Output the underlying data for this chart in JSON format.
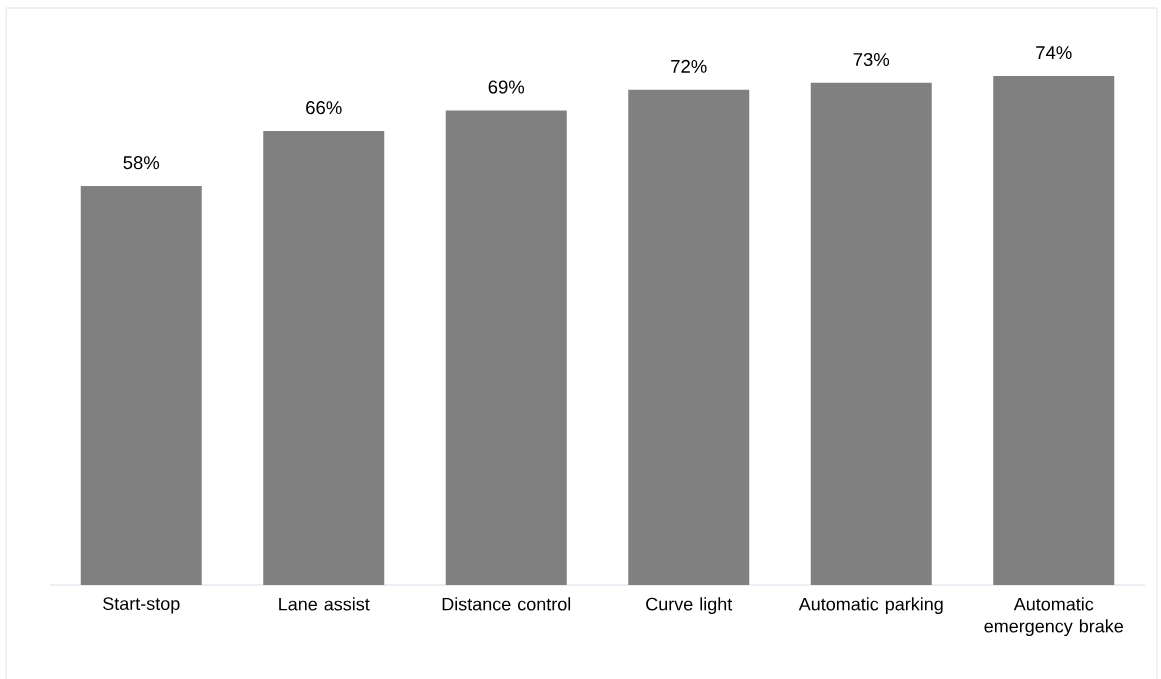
{
  "chart_data": {
    "type": "bar",
    "categories": [
      "Start-stop",
      "Lane assist",
      "Distance control",
      "Curve light",
      "Automatic parking",
      "Automatic emergency brake"
    ],
    "values": [
      58,
      66,
      69,
      72,
      73,
      74
    ],
    "color": "#808080",
    "value_labels": [
      "58%",
      "66%",
      "69%",
      "72%",
      "73%",
      "74%"
    ]
  }
}
